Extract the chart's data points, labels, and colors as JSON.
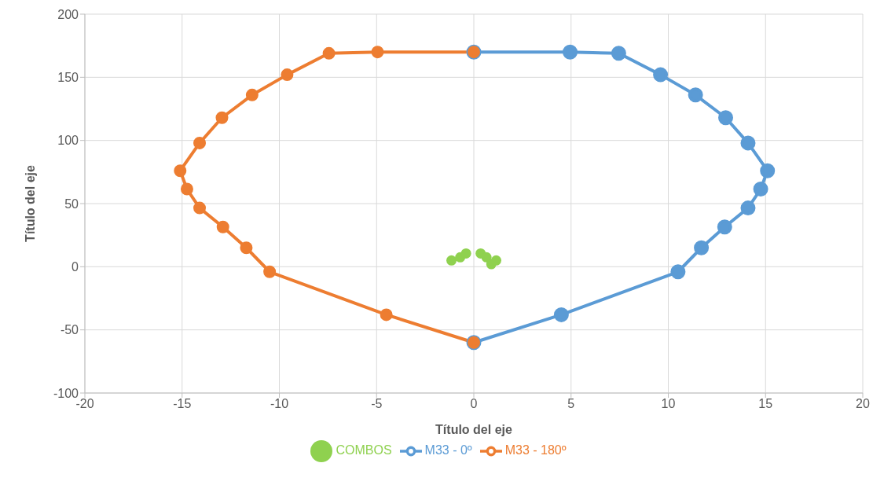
{
  "chart_data": {
    "type": "line",
    "xlabel": "Título del eje",
    "ylabel": "Título del eje",
    "xlim": [
      -20,
      20
    ],
    "xticks": [
      -20,
      -15,
      -10,
      -5,
      0,
      5,
      10,
      15,
      20
    ],
    "ylim": [
      -100,
      200
    ],
    "yticks": [
      -100,
      -50,
      0,
      50,
      100,
      150,
      200
    ],
    "grid": true,
    "legend": "bottom",
    "marker": "circle",
    "series": [
      {
        "name": "COMBOS",
        "type": "scatter",
        "color": "#8fd14f",
        "x": [
          -1.15,
          -0.7,
          -0.4,
          0.35,
          0.65,
          0.9,
          1.15
        ],
        "values": [
          5,
          7.5,
          10.5,
          10.5,
          7.5,
          2,
          5
        ]
      },
      {
        "name": "M33 - 0º",
        "color": "#5b9bd5",
        "x": [
          0,
          4.95,
          7.45,
          9.6,
          11.4,
          12.95,
          14.1,
          15.1,
          14.75,
          14.1,
          12.9,
          11.7,
          10.5,
          4.5,
          0
        ],
        "values": [
          170,
          170,
          169,
          152,
          136,
          118,
          98,
          76,
          61.5,
          46.5,
          31.5,
          15,
          -4,
          -38,
          -60
        ]
      },
      {
        "name": "M33 - 180º",
        "color": "#ed7d31",
        "x": [
          0,
          -4.95,
          -7.45,
          -9.6,
          -11.4,
          -12.95,
          -14.1,
          -15.1,
          -14.75,
          -14.1,
          -12.9,
          -11.7,
          -10.5,
          -4.5,
          0
        ],
        "values": [
          170,
          170,
          169,
          152,
          136,
          118,
          98,
          76,
          61.5,
          46.5,
          31.5,
          15,
          -4,
          -38,
          -60
        ]
      }
    ]
  }
}
